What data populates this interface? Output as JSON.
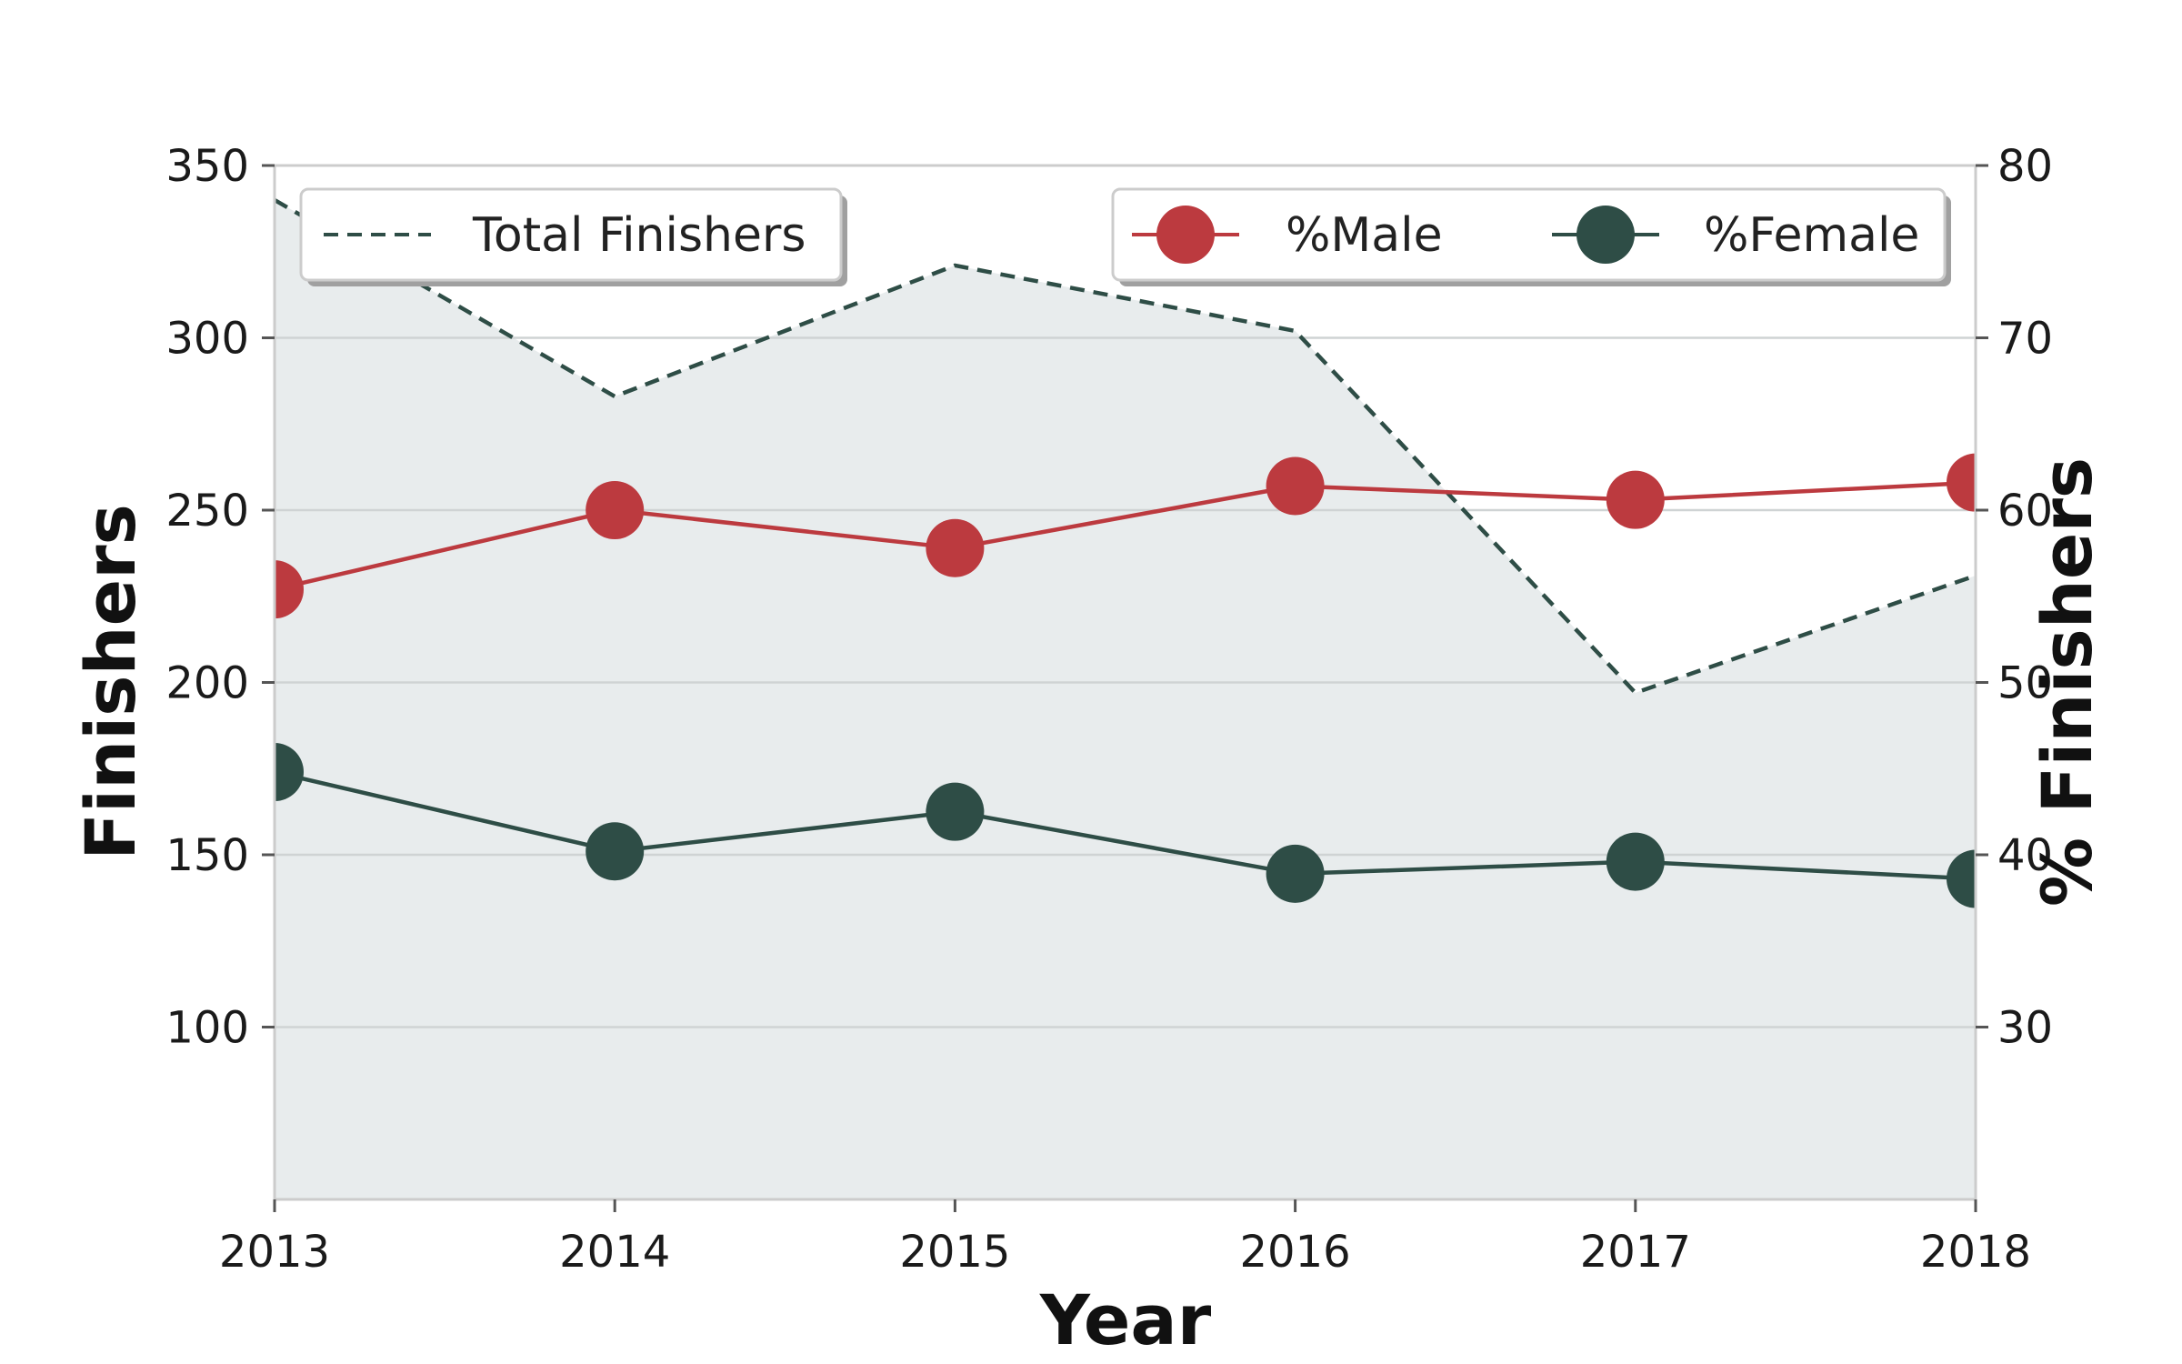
{
  "chart_data": {
    "type": "line",
    "title": "",
    "x": [
      2013,
      2014,
      2015,
      2016,
      2017,
      2018
    ],
    "xlabel": "Year",
    "xlim": [
      2013,
      2018
    ],
    "left_axis": {
      "label": "Finishers",
      "ylim": [
        50,
        350
      ],
      "ticks": [
        100,
        150,
        200,
        250,
        300,
        350
      ]
    },
    "right_axis": {
      "label": "% Finishers",
      "ylim": [
        20,
        80
      ],
      "ticks": [
        30,
        40,
        50,
        60,
        70,
        80
      ]
    },
    "grid": true,
    "series": [
      {
        "name": "Total Finishers",
        "axis": "left",
        "style": "dashed-area",
        "color": "#2e4d46",
        "fill": "#e8eced",
        "values": [
          340,
          283,
          321,
          302,
          197,
          231
        ]
      },
      {
        "name": "%Male",
        "axis": "right",
        "style": "line-markers",
        "color": "#bc3a3f",
        "values": [
          55.4,
          60.0,
          57.8,
          61.4,
          60.6,
          61.6
        ]
      },
      {
        "name": "%Female",
        "axis": "right",
        "style": "line-markers",
        "color": "#2e4d46",
        "values": [
          44.8,
          40.2,
          42.5,
          38.9,
          39.6,
          38.6
        ]
      }
    ],
    "legends": [
      {
        "placement": "top-left",
        "entries": [
          "Total Finishers"
        ]
      },
      {
        "placement": "top-right",
        "entries": [
          "%Male",
          "%Female"
        ]
      }
    ]
  }
}
